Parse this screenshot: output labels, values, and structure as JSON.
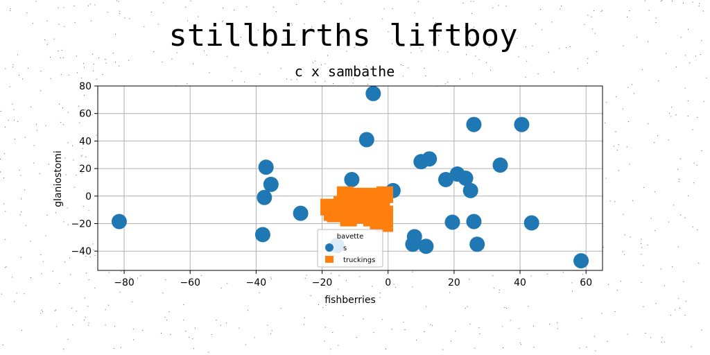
{
  "chart_data": {
    "type": "scatter",
    "title": "stillbirths liftboy",
    "subtitle": "c x sambathe",
    "xlabel": "fishberries",
    "ylabel": "glaniostomi",
    "xlim": [
      -88,
      65
    ],
    "ylim": [
      -54,
      80
    ],
    "xticks": [
      -80,
      -60,
      -40,
      -20,
      0,
      20,
      40,
      60
    ],
    "yticks": [
      -40,
      -20,
      0,
      20,
      40,
      60,
      80
    ],
    "grid": true,
    "legend": {
      "title": "bavette",
      "placement": "lower-center"
    },
    "series": [
      {
        "name": "s",
        "marker": "circle",
        "color": "#1f77b4",
        "points": [
          [
            -81.5,
            -18.5
          ],
          [
            -37,
            21
          ],
          [
            -35.5,
            8.5
          ],
          [
            -37.5,
            -1
          ],
          [
            -38,
            -28
          ],
          [
            -26.5,
            -12.5
          ],
          [
            -11,
            12
          ],
          [
            -6.5,
            41
          ],
          [
            -4.5,
            74.5
          ],
          [
            1.5,
            4
          ],
          [
            10,
            25
          ],
          [
            12.5,
            27
          ],
          [
            17.5,
            12
          ],
          [
            21,
            16
          ],
          [
            23.5,
            13
          ],
          [
            25,
            4
          ],
          [
            26,
            52
          ],
          [
            26,
            -18.5
          ],
          [
            19.5,
            -19
          ],
          [
            34,
            22.5
          ],
          [
            40.5,
            52
          ],
          [
            43.5,
            -19.5
          ],
          [
            27,
            -35
          ],
          [
            8,
            -29.5
          ],
          [
            7.5,
            -35
          ],
          [
            11.5,
            -36.5
          ],
          [
            -15.5,
            -36
          ],
          [
            58.5,
            -47
          ]
        ]
      },
      {
        "name": "truckings",
        "marker": "square",
        "color": "#ff7f0e",
        "points": [
          [
            -18,
            -8
          ],
          [
            -16,
            -13
          ],
          [
            -14,
            -6
          ],
          [
            -12,
            -10
          ],
          [
            -10,
            -14
          ],
          [
            -13,
            1
          ],
          [
            -9,
            -2
          ],
          [
            -7,
            -8
          ],
          [
            -6,
            -13
          ],
          [
            -8,
            0
          ],
          [
            -4,
            -3
          ],
          [
            -3,
            0
          ],
          [
            -2,
            -8
          ],
          [
            -1,
            -13
          ],
          [
            -3,
            -18
          ],
          [
            -1,
            -20
          ],
          [
            -12,
            -16
          ],
          [
            -15,
            -10
          ],
          [
            -5,
            -16
          ],
          [
            -2,
            -4
          ],
          [
            -17,
            -12
          ],
          [
            -11,
            -5
          ],
          [
            -1,
            1
          ],
          [
            -7,
            -4
          ]
        ]
      }
    ]
  }
}
